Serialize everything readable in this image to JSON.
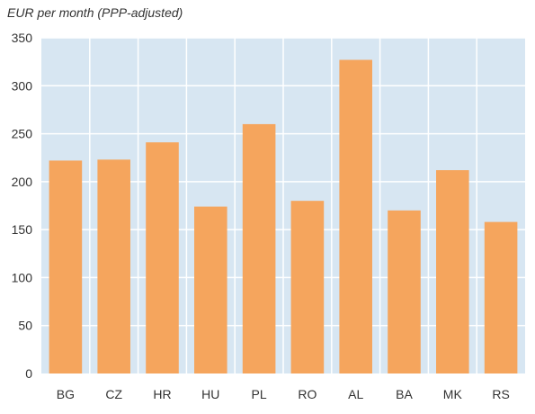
{
  "chart_data": {
    "type": "bar",
    "title": "",
    "ylabel": "EUR per month (PPP-adjusted)",
    "xlabel": "",
    "categories": [
      "BG",
      "CZ",
      "HR",
      "HU",
      "PL",
      "RO",
      "AL",
      "BA",
      "MK",
      "RS"
    ],
    "values": [
      222,
      223,
      241,
      174,
      260,
      180,
      327,
      170,
      212,
      158
    ],
    "ylim": [
      0,
      350
    ],
    "yticks": [
      0,
      50,
      100,
      150,
      200,
      250,
      300,
      350
    ],
    "grid": true,
    "colors": {
      "bar": "#F5A55D",
      "plot_background": "#D7E6F2",
      "grid": "#FFFFFF",
      "text": "#333333"
    }
  }
}
